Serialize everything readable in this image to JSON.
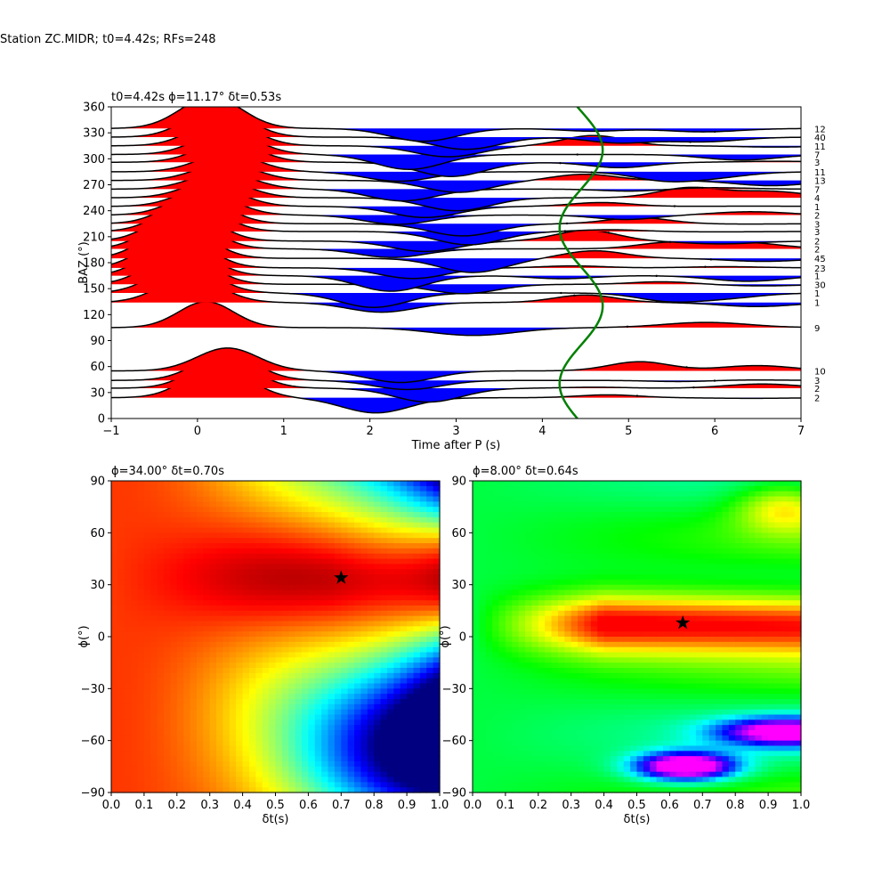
{
  "figure": {
    "suptitle": "Station ZC.MIDR; t0=4.42s; RFs=248"
  },
  "chart_data": [
    {
      "type": "line",
      "panel": "receiver-function-wiggles",
      "title": "t0=4.42s ϕ=11.17° δt=0.53s",
      "xlabel": "Time after P (s)",
      "ylabel": "BAZ (°)",
      "xlim": [
        -1,
        7
      ],
      "ylim": [
        0,
        360
      ],
      "xticks": [
        -1,
        0,
        1,
        2,
        3,
        4,
        5,
        6,
        7
      ],
      "yticks": [
        0,
        30,
        60,
        90,
        120,
        150,
        180,
        210,
        240,
        270,
        300,
        330,
        360
      ],
      "fill_positive_color": "#ff0000",
      "fill_negative_color": "#0000ff",
      "line_color": "#000000",
      "series": [
        {
          "baz": 24,
          "count": "2"
        },
        {
          "baz": 35,
          "count": "2"
        },
        {
          "baz": 44,
          "count": "3"
        },
        {
          "baz": 55,
          "count": "10"
        },
        {
          "baz": 105,
          "count": "9"
        },
        {
          "baz": 134,
          "count": "1"
        },
        {
          "baz": 145,
          "count": "1"
        },
        {
          "baz": 155,
          "count": "30"
        },
        {
          "baz": 165,
          "count": "1"
        },
        {
          "baz": 174,
          "count": "23"
        },
        {
          "baz": 185,
          "count": "45"
        },
        {
          "baz": 196,
          "count": "2"
        },
        {
          "baz": 205,
          "count": "2"
        },
        {
          "baz": 216,
          "count": "3"
        },
        {
          "baz": 225,
          "count": "3"
        },
        {
          "baz": 235,
          "count": "2"
        },
        {
          "baz": 245,
          "count": "1"
        },
        {
          "baz": 255,
          "count": "4"
        },
        {
          "baz": 265,
          "count": "7"
        },
        {
          "baz": 275,
          "count": "13"
        },
        {
          "baz": 285,
          "count": "11"
        },
        {
          "baz": 296,
          "count": "3"
        },
        {
          "baz": 305,
          "count": "7"
        },
        {
          "baz": 315,
          "count": "11"
        },
        {
          "baz": 325,
          "count": "40"
        },
        {
          "baz": 335,
          "count": "12"
        }
      ],
      "moveout_curve": {
        "color": "#008000",
        "t_mean": 4.45,
        "t_amplitude": 0.25
      }
    },
    {
      "type": "heatmap",
      "panel": "energy-grid-left",
      "title": "ϕ=34.00° δt=0.70s",
      "xlabel": "δt(s)",
      "ylabel": "ϕ(°)",
      "xlim": [
        0,
        1
      ],
      "ylim": [
        -90,
        90
      ],
      "xticks": [
        0.0,
        0.1,
        0.2,
        0.3,
        0.4,
        0.5,
        0.6,
        0.7,
        0.8,
        0.9,
        1.0
      ],
      "yticks": [
        -90,
        -60,
        -30,
        0,
        30,
        60,
        90
      ],
      "colormap": "jet",
      "best": {
        "phi": 34.0,
        "dt": 0.7
      }
    },
    {
      "type": "heatmap",
      "panel": "energy-grid-right",
      "title": "ϕ=8.00° δt=0.64s",
      "xlabel": "δt(s)",
      "ylabel": "ϕ(°)",
      "xlim": [
        0,
        1
      ],
      "ylim": [
        -90,
        90
      ],
      "xticks": [
        0.0,
        0.1,
        0.2,
        0.3,
        0.4,
        0.5,
        0.6,
        0.7,
        0.8,
        0.9,
        1.0
      ],
      "yticks": [
        -90,
        -60,
        -30,
        0,
        30,
        60,
        90
      ],
      "colormap": "hsv",
      "best": {
        "phi": 8.0,
        "dt": 0.64
      }
    }
  ]
}
